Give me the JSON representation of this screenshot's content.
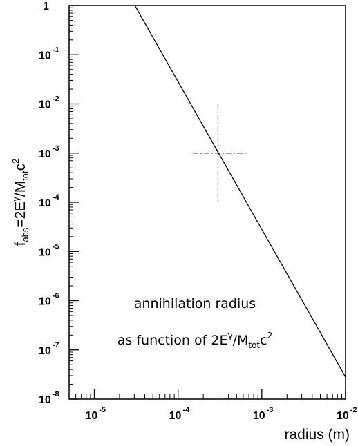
{
  "chart_data": {
    "type": "line",
    "xlabel": "radius (m)",
    "ylabel": {
      "f": "f",
      "f_sub": "abs",
      "eq": "=2E",
      "gamma": "γ",
      "slash": "/M",
      "m_sub": "tot",
      "c": "c",
      "c_sup": "2"
    },
    "x_scale": "log",
    "y_scale": "log",
    "xlim": [
      5e-06,
      0.01
    ],
    "ylim": [
      1e-08,
      1
    ],
    "x_ticks": [
      {
        "value": 1e-05,
        "base": "10",
        "exp": "-5"
      },
      {
        "value": 0.0001,
        "base": "10",
        "exp": "-4"
      },
      {
        "value": 0.001,
        "base": "10",
        "exp": "-3"
      },
      {
        "value": 0.01,
        "base": "10",
        "exp": "-2"
      }
    ],
    "y_ticks": [
      {
        "value": 1,
        "base": "1",
        "exp": ""
      },
      {
        "value": 0.1,
        "base": "10",
        "exp": "-1"
      },
      {
        "value": 0.01,
        "base": "10",
        "exp": "-2"
      },
      {
        "value": 0.001,
        "base": "10",
        "exp": "-3"
      },
      {
        "value": 0.0001,
        "base": "10",
        "exp": "-4"
      },
      {
        "value": 1e-05,
        "base": "10",
        "exp": "-5"
      },
      {
        "value": 1e-06,
        "base": "10",
        "exp": "-6"
      },
      {
        "value": 1e-07,
        "base": "10",
        "exp": "-7"
      },
      {
        "value": 1e-08,
        "base": "10",
        "exp": "-8"
      }
    ],
    "series": [
      {
        "line_style": "solid",
        "x": [
          3.05e-05,
          0.01
        ],
        "y": [
          1,
          2.8e-08
        ]
      }
    ],
    "crosshair": {
      "line_style": "dash-dot",
      "center": [
        0.0003,
        0.001
      ],
      "x_range": [
        0.00015,
        0.00065
      ],
      "y_range": [
        0.0001,
        0.01
      ]
    },
    "annotation": {
      "line1": "annihilation radius",
      "line2_prefix": "as function of 2E",
      "gamma": "γ",
      "slash": "/M",
      "sub": "tot",
      "c": "c",
      "sup": "2"
    },
    "grid": false,
    "legend": "none",
    "colors": {
      "line": "#000000",
      "background": "#ffffff"
    }
  }
}
